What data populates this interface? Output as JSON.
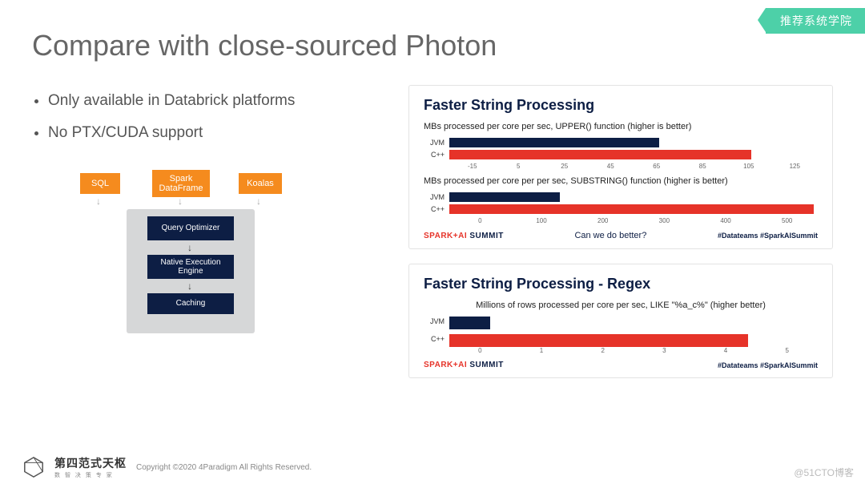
{
  "badge": "推荐系统学院",
  "title": "Compare with close-sourced Photon",
  "bullets": [
    "Only available in Databrick platforms",
    "No PTX/CUDA support"
  ],
  "diagram": {
    "top": [
      "SQL",
      "Spark DataFrame",
      "Koalas"
    ],
    "stack": [
      "Query Optimizer",
      "Native Execution Engine",
      "Caching"
    ],
    "colors": {
      "top": "#f58b1e",
      "stack": "#0d1e44",
      "box": "#d6d7d8"
    }
  },
  "summit": {
    "a": "SPARK+AI ",
    "b": "SUMMIT",
    "tags": "#Datateams #SparkAISummit"
  },
  "card1": {
    "title": "Faster String Processing",
    "question": "Can we do better?",
    "chartA": {
      "subtitle": "MBs processed per core per sec, UPPER() function (higher is better)",
      "xlim": [
        -15,
        125
      ],
      "ticks": [
        -15,
        5,
        25,
        45,
        65,
        85,
        105,
        125
      ],
      "series": [
        {
          "label": "JVM",
          "value": 65,
          "color": "#0d1e44",
          "style": "width:57%;background:#0d1e44"
        },
        {
          "label": "C++",
          "value": 100,
          "color": "#e63329",
          "style": "width:82%;background:#e63329"
        }
      ]
    },
    "chartB": {
      "subtitle": "MBs processed per core per per sec, SUBSTRING() function (higher is better)",
      "xlim": [
        0,
        500
      ],
      "ticks": [
        0,
        100,
        200,
        300,
        400,
        500
      ],
      "series": [
        {
          "label": "JVM",
          "value": 150,
          "color": "#0d1e44",
          "style": "width:30%;background:#0d1e44"
        },
        {
          "label": "C++",
          "value": 495,
          "color": "#e63329",
          "style": "width:99%;background:#e63329"
        }
      ]
    }
  },
  "card2": {
    "title": "Faster String Processing - Regex",
    "chart": {
      "subtitle": "Millions of rows processed per core per sec, LIKE \"%a_c%\" (higher better)",
      "xlim": [
        0,
        5
      ],
      "ticks": [
        0,
        1,
        2,
        3,
        4,
        5
      ],
      "series": [
        {
          "label": "JVM",
          "value": 0.55,
          "color": "#0d1e44",
          "style": "width:11%;background:#0d1e44;height:16px"
        },
        {
          "label": "C++",
          "value": 4.05,
          "color": "#e63329",
          "style": "width:81%;background:#e63329;height:16px"
        }
      ]
    }
  },
  "footer": {
    "brand": "第四范式天枢",
    "sub": "数 智 决 策 专 家",
    "copyright": "Copyright ©2020 4Paradigm All Rights Reserved."
  },
  "watermark": "@51CTO博客"
}
